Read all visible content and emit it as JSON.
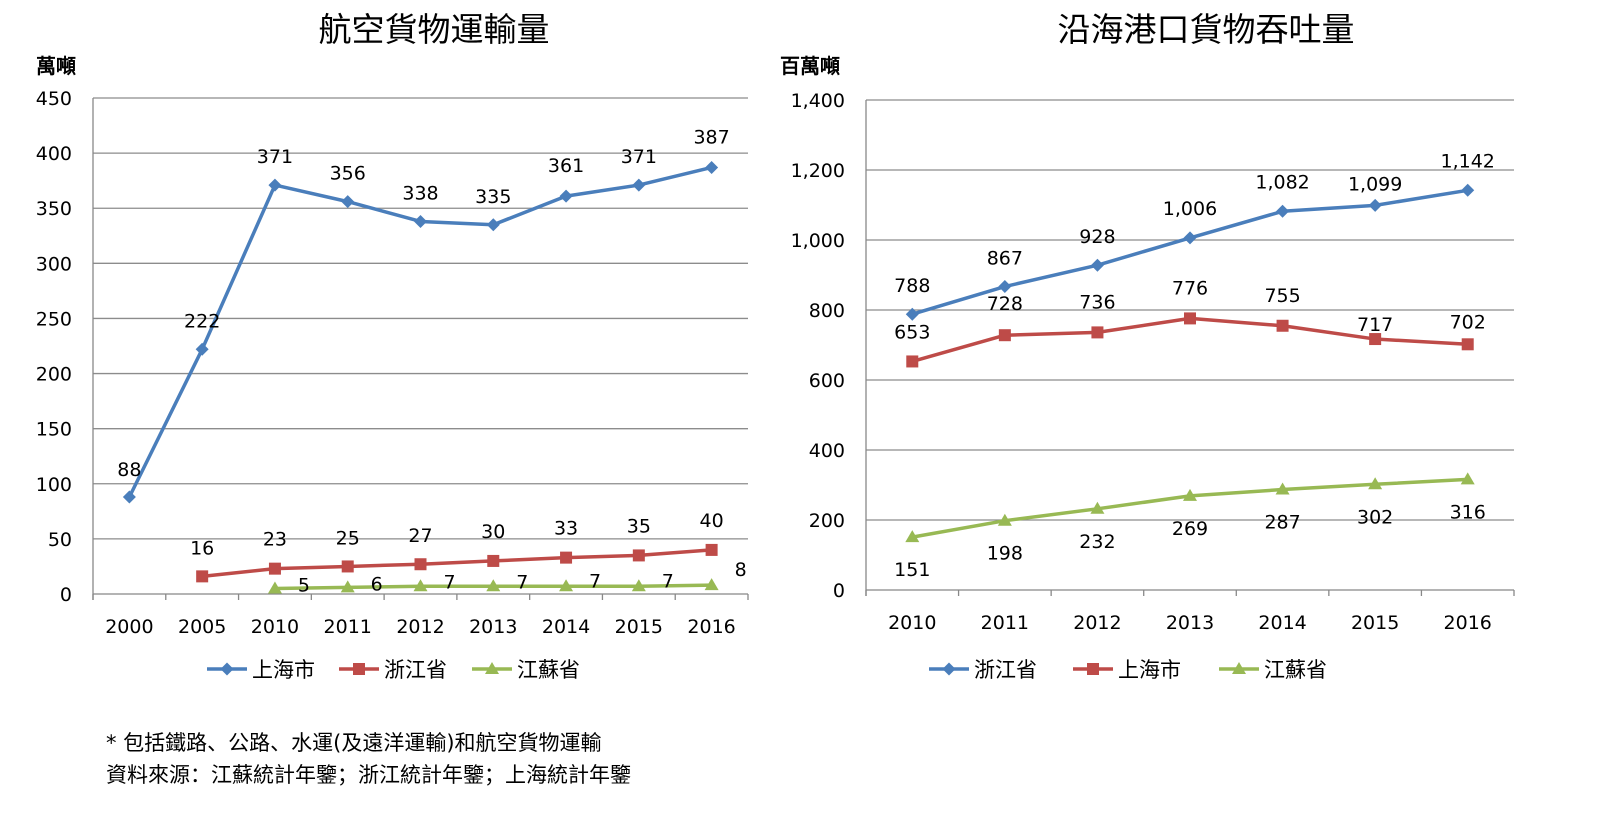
{
  "colors": {
    "blue": "#4a7ebb",
    "red": "#be4b48",
    "green": "#98b954",
    "grid": "#8c8c8c",
    "axis": "#888888"
  },
  "chart_data": [
    {
      "type": "line",
      "title": "航空貨物運輸量",
      "ylabel": "萬噸",
      "xlabel": "",
      "categories": [
        "2000",
        "2005",
        "2010",
        "2011",
        "2012",
        "2013",
        "2014",
        "2015",
        "2016"
      ],
      "ylim": [
        0,
        450
      ],
      "yticks": [
        0,
        50,
        100,
        150,
        200,
        250,
        300,
        350,
        400,
        450
      ],
      "ytick_labels": [
        "0",
        "50",
        "100",
        "150",
        "200",
        "250",
        "300",
        "350",
        "400",
        "450"
      ],
      "grid": true,
      "legend_position": "bottom",
      "series": [
        {
          "name": "上海市",
          "color": "blue",
          "marker": "diamond",
          "values": [
            88,
            222,
            371,
            356,
            338,
            335,
            361,
            371,
            387
          ],
          "labels": [
            "88",
            "222",
            "371",
            "356",
            "338",
            "335",
            "361",
            "371",
            "387"
          ]
        },
        {
          "name": "浙江省",
          "color": "red",
          "marker": "square",
          "values": [
            null,
            16,
            23,
            25,
            27,
            30,
            33,
            35,
            40
          ],
          "labels": [
            null,
            "16",
            "23",
            "25",
            "27",
            "30",
            "33",
            "35",
            "40"
          ]
        },
        {
          "name": "江蘇省",
          "color": "green",
          "marker": "triangle",
          "values": [
            null,
            null,
            5,
            6,
            7,
            7,
            7,
            7,
            8
          ],
          "labels": [
            null,
            null,
            "5",
            "6",
            "7",
            "7",
            "7",
            "7",
            "8"
          ]
        }
      ]
    },
    {
      "type": "line",
      "title": "沿海港口貨物吞吐量",
      "ylabel": "百萬噸",
      "xlabel": "",
      "categories": [
        "2010",
        "2011",
        "2012",
        "2013",
        "2014",
        "2015",
        "2016"
      ],
      "ylim": [
        0,
        1400
      ],
      "yticks": [
        0,
        200,
        400,
        600,
        800,
        1000,
        1200,
        1400
      ],
      "ytick_labels": [
        "0",
        "200",
        "400",
        "600",
        "800",
        "1,000",
        "1,200",
        "1,400"
      ],
      "grid": true,
      "legend_position": "bottom",
      "series": [
        {
          "name": "浙江省",
          "color": "blue",
          "marker": "diamond",
          "values": [
            788,
            867,
            928,
            1006,
            1082,
            1099,
            1142
          ],
          "labels": [
            "788",
            "867",
            "928",
            "1,006",
            "1,082",
            "1,099",
            "1,142"
          ]
        },
        {
          "name": "上海市",
          "color": "red",
          "marker": "square",
          "values": [
            653,
            728,
            736,
            776,
            755,
            717,
            702
          ],
          "labels": [
            "653",
            "728",
            "736",
            "776",
            "755",
            "717",
            "702"
          ]
        },
        {
          "name": "江蘇省",
          "color": "green",
          "marker": "triangle",
          "values": [
            151,
            198,
            232,
            269,
            287,
            302,
            316
          ],
          "labels": [
            "151",
            "198",
            "232",
            "269",
            "287",
            "302",
            "316"
          ]
        }
      ]
    }
  ],
  "notes": {
    "line1": "* 包括鐵路、公路、水運(及遠洋運輸)和航空貨物運輸",
    "line2": "資料來源：江蘇統計年鑒；浙江統計年鑒；上海統計年鑒"
  }
}
